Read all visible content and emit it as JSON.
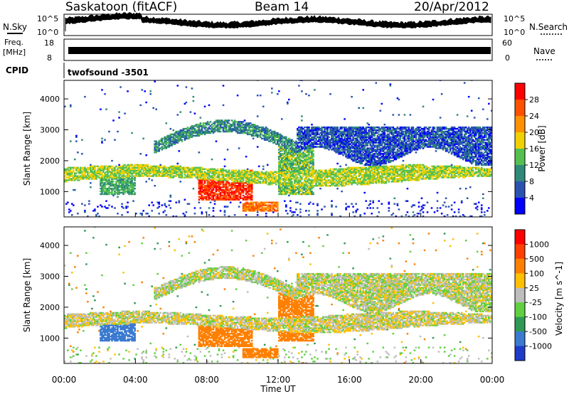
{
  "header": {
    "station": "Saskatoon (fitACF)",
    "beam": "Beam 14",
    "date": "20/Apr/2012"
  },
  "strips": {
    "nsky_label": "N.Sky",
    "nsearch_label": "N.Search",
    "nsky_ticks": [
      "10^5",
      "10^0"
    ],
    "freq_label_1": "Freq.",
    "freq_label_2": "[MHz]",
    "freq_ticks": [
      "18",
      "8"
    ],
    "nave_label": "Nave",
    "nave_ticks": [
      "60",
      "0"
    ],
    "cpid_label": "CPID",
    "cpid_value": "twofsound -3501"
  },
  "chart_data": [
    {
      "type": "heatmap",
      "title": "",
      "xlabel": "Time UT",
      "ylabel": "Slant Range [km]",
      "x_ticks": [
        "00:00",
        "04:00",
        "08:00",
        "12:00",
        "16:00",
        "20:00",
        "00:00"
      ],
      "xlim_hours": [
        0,
        24
      ],
      "y_ticks": [
        1000,
        2000,
        3000,
        4000
      ],
      "ylim": [
        180,
        4600
      ],
      "colorbar": {
        "label": "Power [dB]",
        "ticks": [
          "4",
          "8",
          "12",
          "16",
          "20",
          "24",
          "28"
        ],
        "colors": [
          "#0000ff",
          "#2a52b0",
          "#2f8a7a",
          "#55c050",
          "#f0d000",
          "#ff9000",
          "#ff5000",
          "#ff0000"
        ]
      }
    },
    {
      "type": "heatmap",
      "title": "",
      "xlabel": "Time UT",
      "ylabel": "Slant Range [km]",
      "x_ticks": [
        "00:00",
        "04:00",
        "08:00",
        "12:00",
        "16:00",
        "20:00",
        "00:00"
      ],
      "xlim_hours": [
        0,
        24
      ],
      "y_ticks": [
        1000,
        2000,
        3000,
        4000
      ],
      "ylim": [
        180,
        4600
      ],
      "colorbar": {
        "label": "Velocity [m s^-1]",
        "ticks": [
          "1000",
          "500",
          "100",
          "25",
          "-25",
          "-100",
          "-500",
          "-1000"
        ],
        "colors": [
          "#1f3cc8",
          "#3a7ad0",
          "#2f9a55",
          "#60d040",
          "#bdbdbd",
          "#ffc000",
          "#ff8000",
          "#ff4000",
          "#ff0000"
        ]
      }
    }
  ],
  "x_axis_title": "Time UT"
}
